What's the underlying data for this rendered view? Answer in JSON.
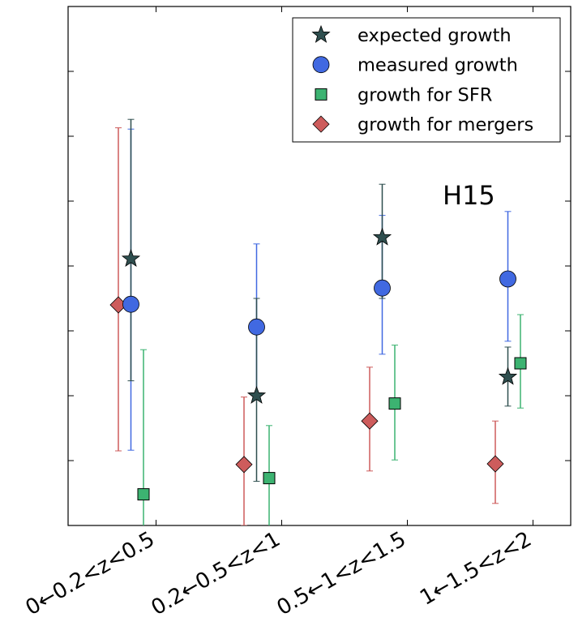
{
  "chart_data": {
    "type": "scatter",
    "title": "",
    "xlabel": "",
    "ylabel": "",
    "annotation": "H15",
    "categories": [
      "0←0.2<z<0.5",
      "0.2←0.5<z<1",
      "0.5←1<z<1.5",
      "1←1.5<z<2"
    ],
    "xlim": [
      -0.7,
      3.3
    ],
    "ylim": [
      0,
      8
    ],
    "y_ticks": [
      1,
      2,
      3,
      4,
      5,
      6,
      7
    ],
    "y_tick_labels_shown": false,
    "legend_position": "top-right",
    "series": [
      {
        "name": "expected growth",
        "marker": "star",
        "color": "#2F4F4F",
        "offset": -0.2,
        "values": [
          4.11,
          2.0,
          4.44,
          2.29
        ],
        "err_low": [
          2.23,
          0.68,
          3.5,
          1.84
        ],
        "err_high": [
          6.26,
          3.5,
          5.26,
          2.75
        ]
      },
      {
        "name": "measured growth",
        "marker": "circle",
        "color": "#4169E1",
        "offset": -0.2,
        "values": [
          3.41,
          3.06,
          3.66,
          3.8
        ],
        "err_low": [
          1.16,
          1.95,
          2.64,
          2.84
        ],
        "err_high": [
          6.11,
          4.34,
          4.78,
          4.84
        ]
      },
      {
        "name": "growth for SFR",
        "marker": "square",
        "color": "#3CB371",
        "offset": -0.1,
        "values": [
          0.48,
          0.73,
          1.88,
          2.5
        ],
        "err_low": [
          -0.2,
          -0.2,
          1.01,
          1.81
        ],
        "err_high": [
          2.71,
          1.54,
          2.78,
          3.25
        ]
      },
      {
        "name": "growth for mergers",
        "marker": "diamond",
        "color": "#CD5C5C",
        "offset": -0.3,
        "values": [
          3.4,
          0.94,
          1.61,
          0.95
        ],
        "err_low": [
          1.15,
          0.0,
          0.84,
          0.34
        ],
        "err_high": [
          6.13,
          1.98,
          2.44,
          1.61
        ]
      }
    ]
  }
}
